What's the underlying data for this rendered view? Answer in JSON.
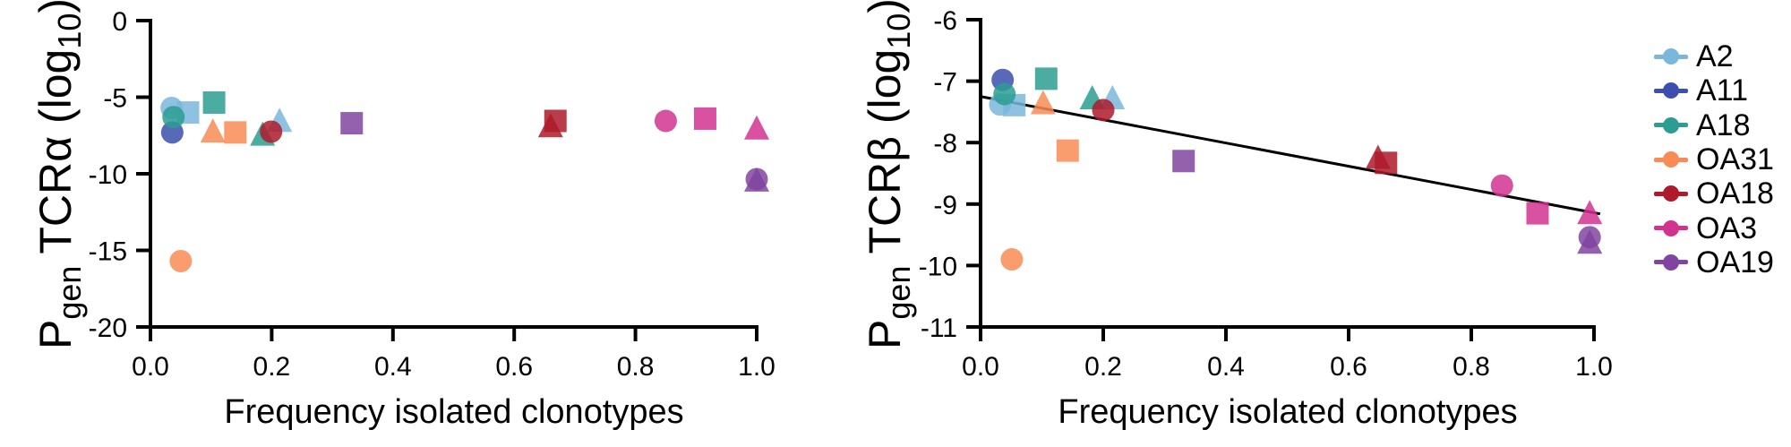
{
  "figure": {
    "background": "#ffffff",
    "text_color": "#000000",
    "axis_color": "#000000",
    "trendline_color": "#000000"
  },
  "legend": {
    "items": [
      {
        "label": "A2",
        "color": "#7ab7db"
      },
      {
        "label": "A11",
        "color": "#3c4fae"
      },
      {
        "label": "A18",
        "color": "#2b9d92"
      },
      {
        "label": "OA31",
        "color": "#f98c55"
      },
      {
        "label": "OA18",
        "color": "#ae1a2b"
      },
      {
        "label": "OA3",
        "color": "#d23390"
      },
      {
        "label": "OA19",
        "color": "#8045a0"
      }
    ]
  },
  "chart_data": [
    {
      "type": "scatter",
      "panel": "TCR alpha",
      "ylabel": "Pgen TCRα (log10)",
      "ylabel_parts": {
        "p": "P",
        "sub1": "gen",
        "mid": " TCRα (log",
        "sub2": "10",
        "end": ")"
      },
      "xlabel": "Frequency isolated clonotypes",
      "xlim": [
        0.0,
        1.0
      ],
      "ylim": [
        -20,
        0
      ],
      "xticks": [
        0.0,
        0.2,
        0.4,
        0.6,
        0.8,
        1.0
      ],
      "xtick_labels": [
        "0.0",
        "0.2",
        "0.4",
        "0.6",
        "0.8",
        "1.0"
      ],
      "yticks": [
        0,
        -5,
        -10,
        -15,
        -20
      ],
      "ytick_labels": [
        "0",
        "-5",
        "-10",
        "-15",
        "-20"
      ],
      "grid": false,
      "series": [
        {
          "name": "A2",
          "points": [
            {
              "shape": "circle",
              "x": 0.035,
              "y": -5.7
            },
            {
              "shape": "square",
              "x": 0.062,
              "y": -6.0
            },
            {
              "shape": "triangle",
              "x": 0.213,
              "y": -6.55
            }
          ]
        },
        {
          "name": "A11",
          "points": [
            {
              "shape": "circle",
              "x": 0.036,
              "y": -7.3
            }
          ]
        },
        {
          "name": "A18",
          "points": [
            {
              "shape": "circle",
              "x": 0.038,
              "y": -6.3
            },
            {
              "shape": "square",
              "x": 0.105,
              "y": -5.35
            },
            {
              "shape": "triangle",
              "x": 0.185,
              "y": -7.45
            }
          ]
        },
        {
          "name": "OA31",
          "points": [
            {
              "shape": "circle",
              "x": 0.05,
              "y": -15.7
            },
            {
              "shape": "triangle",
              "x": 0.103,
              "y": -7.25
            },
            {
              "shape": "square",
              "x": 0.14,
              "y": -7.3
            }
          ]
        },
        {
          "name": "OA18",
          "points": [
            {
              "shape": "triangle",
              "x": 0.66,
              "y": -6.9
            },
            {
              "shape": "square",
              "x": 0.668,
              "y": -6.55
            },
            {
              "shape": "circle",
              "x": 0.199,
              "y": -7.25
            }
          ]
        },
        {
          "name": "OA3",
          "points": [
            {
              "shape": "circle",
              "x": 0.85,
              "y": -6.55
            },
            {
              "shape": "square",
              "x": 0.915,
              "y": -6.4
            },
            {
              "shape": "triangle",
              "x": 1.0,
              "y": -7.05
            }
          ]
        },
        {
          "name": "OA19",
          "points": [
            {
              "shape": "square",
              "x": 0.332,
              "y": -6.7
            },
            {
              "shape": "triangle",
              "x": 1.0,
              "y": -10.45
            },
            {
              "shape": "circle",
              "x": 1.0,
              "y": -10.35
            }
          ]
        }
      ]
    },
    {
      "type": "scatter",
      "panel": "TCR beta",
      "ylabel": "Pgen TCRβ (log10)",
      "ylabel_parts": {
        "p": "P",
        "sub1": "gen",
        "mid": " TCRβ (log",
        "sub2": "10",
        "end": ")"
      },
      "xlabel": "Frequency isolated clonotypes",
      "xlim": [
        0.0,
        1.0
      ],
      "ylim": [
        -11,
        -6
      ],
      "xticks": [
        0.0,
        0.2,
        0.4,
        0.6,
        0.8,
        1.0
      ],
      "xtick_labels": [
        "0.0",
        "0.2",
        "0.4",
        "0.6",
        "0.8",
        "1.0"
      ],
      "yticks": [
        -6,
        -7,
        -8,
        -9,
        -10,
        -11
      ],
      "ytick_labels": [
        "-6",
        "-7",
        "-8",
        "-9",
        "-10",
        "-11"
      ],
      "grid": false,
      "trendline": {
        "x_start": 0.0,
        "y_start": -7.25,
        "x_end": 1.01,
        "y_end": -9.16
      },
      "series": [
        {
          "name": "A2",
          "points": [
            {
              "shape": "circle",
              "x": 0.032,
              "y": -7.38
            },
            {
              "shape": "square",
              "x": 0.055,
              "y": -7.39
            },
            {
              "shape": "triangle",
              "x": 0.215,
              "y": -7.28
            }
          ]
        },
        {
          "name": "A11",
          "points": [
            {
              "shape": "circle",
              "x": 0.036,
              "y": -6.98
            }
          ]
        },
        {
          "name": "A18",
          "points": [
            {
              "shape": "circle",
              "x": 0.039,
              "y": -7.21
            },
            {
              "shape": "square",
              "x": 0.107,
              "y": -6.96
            },
            {
              "shape": "triangle",
              "x": 0.182,
              "y": -7.28
            }
          ]
        },
        {
          "name": "OA31",
          "points": [
            {
              "shape": "circle",
              "x": 0.051,
              "y": -9.9
            },
            {
              "shape": "triangle",
              "x": 0.102,
              "y": -7.36
            },
            {
              "shape": "square",
              "x": 0.142,
              "y": -8.13
            }
          ]
        },
        {
          "name": "OA18",
          "points": [
            {
              "shape": "triangle",
              "x": 0.648,
              "y": -8.25
            },
            {
              "shape": "square",
              "x": 0.661,
              "y": -8.33
            },
            {
              "shape": "circle",
              "x": 0.2,
              "y": -7.47
            }
          ]
        },
        {
          "name": "OA3",
          "points": [
            {
              "shape": "circle",
              "x": 0.85,
              "y": -8.7
            },
            {
              "shape": "square",
              "x": 0.908,
              "y": -9.15
            },
            {
              "shape": "triangle",
              "x": 0.993,
              "y": -9.15
            }
          ]
        },
        {
          "name": "OA19",
          "points": [
            {
              "shape": "square",
              "x": 0.331,
              "y": -8.3
            },
            {
              "shape": "triangle",
              "x": 0.993,
              "y": -9.63
            },
            {
              "shape": "circle",
              "x": 0.993,
              "y": -9.54
            }
          ]
        }
      ]
    }
  ]
}
